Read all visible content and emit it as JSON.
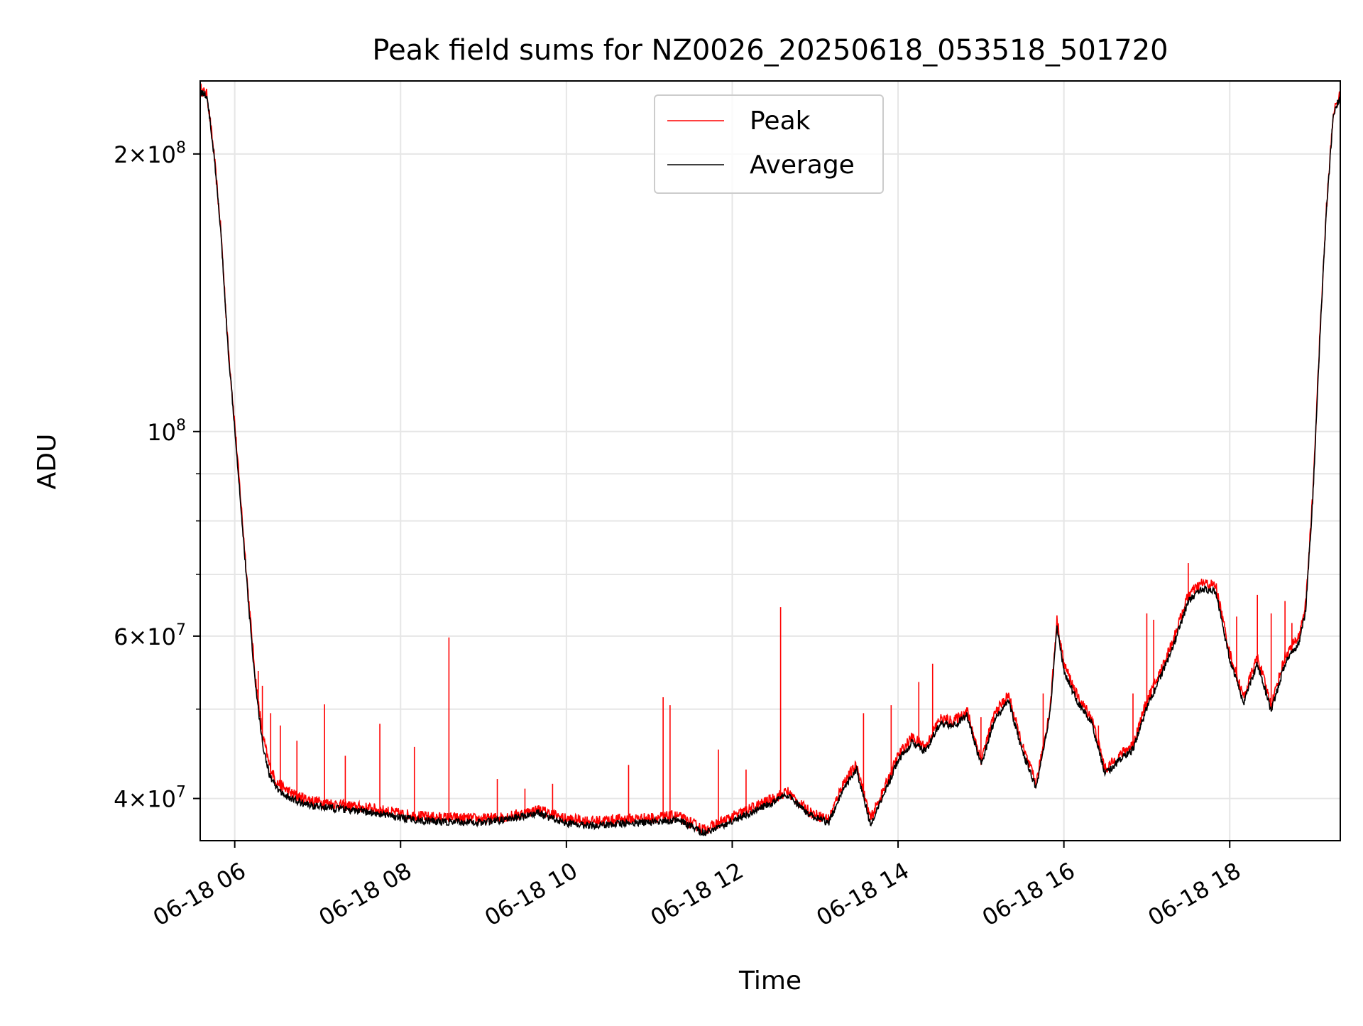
{
  "chart_data": {
    "type": "line",
    "title": "Peak field sums for NZ0026_20250618_053518_501720",
    "xlabel": "Time",
    "ylabel": "ADU",
    "yscale": "log",
    "ylim": [
      36000000,
      240000000
    ],
    "xlim": [
      "06-18 05:35",
      "06-18 19:20"
    ],
    "grid": true,
    "legend_position": "top-center",
    "x_ticks": [
      {
        "value": "06-18 06:00",
        "label": "06-18 06"
      },
      {
        "value": "06-18 08:00",
        "label": "06-18 08"
      },
      {
        "value": "06-18 10:00",
        "label": "06-18 10"
      },
      {
        "value": "06-18 12:00",
        "label": "06-18 12"
      },
      {
        "value": "06-18 14:00",
        "label": "06-18 14"
      },
      {
        "value": "06-18 16:00",
        "label": "06-18 16"
      },
      {
        "value": "06-18 18:00",
        "label": "06-18 18"
      }
    ],
    "y_ticks": [
      {
        "value": 40000000,
        "mantissa": "4",
        "exponent": "7"
      },
      {
        "value": 60000000,
        "mantissa": "6",
        "exponent": "7"
      },
      {
        "value": 100000000,
        "mantissa": "",
        "exponent": "8"
      },
      {
        "value": 200000000,
        "mantissa": "2",
        "exponent": "8"
      }
    ],
    "y_minor_ticks": [
      50000000,
      70000000,
      80000000,
      90000000
    ],
    "base_label": "10",
    "times_sign": "×",
    "series": [
      {
        "name": "Peak",
        "color": "#ff0000",
        "points": [
          [
            "06-18 05:35",
            235000000
          ],
          [
            "06-18 05:40",
            232000000
          ],
          [
            "06-18 05:45",
            200000000
          ],
          [
            "06-18 05:50",
            165000000
          ],
          [
            "06-18 05:55",
            125000000
          ],
          [
            "06-18 06:00",
            102000000
          ],
          [
            "06-18 06:05",
            82000000
          ],
          [
            "06-18 06:10",
            66000000
          ],
          [
            "06-18 06:15",
            54000000
          ],
          [
            "06-18 06:20",
            47000000
          ],
          [
            "06-18 06:25",
            43500000
          ],
          [
            "06-18 06:30",
            41700000
          ],
          [
            "06-18 06:40",
            40600000
          ],
          [
            "06-18 06:50",
            40000000
          ],
          [
            "06-18 07:00",
            39700000
          ],
          [
            "06-18 07:20",
            39300000
          ],
          [
            "06-18 07:40",
            39000000
          ],
          [
            "06-18 08:00",
            38500000
          ],
          [
            "06-18 08:20",
            38200000
          ],
          [
            "06-18 08:40",
            38100000
          ],
          [
            "06-18 09:00",
            38000000
          ],
          [
            "06-18 09:20",
            38300000
          ],
          [
            "06-18 09:40",
            38900000
          ],
          [
            "06-18 10:00",
            38000000
          ],
          [
            "06-18 10:20",
            37800000
          ],
          [
            "06-18 10:40",
            38000000
          ],
          [
            "06-18 11:00",
            38100000
          ],
          [
            "06-18 11:20",
            38300000
          ],
          [
            "06-18 11:40",
            37000000
          ],
          [
            "06-18 12:00",
            38200000
          ],
          [
            "06-18 12:20",
            39400000
          ],
          [
            "06-18 12:40",
            40700000
          ],
          [
            "06-18 12:50",
            39300000
          ],
          [
            "06-18 13:00",
            38400000
          ],
          [
            "06-18 13:10",
            38000000
          ],
          [
            "06-18 13:20",
            41500000
          ],
          [
            "06-18 13:30",
            43500000
          ],
          [
            "06-18 13:40",
            38000000
          ],
          [
            "06-18 13:50",
            41000000
          ],
          [
            "06-18 14:00",
            44500000
          ],
          [
            "06-18 14:10",
            46600000
          ],
          [
            "06-18 14:20",
            45500000
          ],
          [
            "06-18 14:30",
            48800000
          ],
          [
            "06-18 14:40",
            48500000
          ],
          [
            "06-18 14:50",
            49800000
          ],
          [
            "06-18 15:00",
            44000000
          ],
          [
            "06-18 15:10",
            49500000
          ],
          [
            "06-18 15:20",
            51800000
          ],
          [
            "06-18 15:30",
            45500000
          ],
          [
            "06-18 15:40",
            41500000
          ],
          [
            "06-18 15:50",
            50000000
          ],
          [
            "06-18 15:55",
            62500000
          ],
          [
            "06-18 16:00",
            56000000
          ],
          [
            "06-18 16:10",
            51500000
          ],
          [
            "06-18 16:20",
            49000000
          ],
          [
            "06-18 16:30",
            43000000
          ],
          [
            "06-18 16:40",
            44500000
          ],
          [
            "06-18 16:50",
            45800000
          ],
          [
            "06-18 17:00",
            51000000
          ],
          [
            "06-18 17:10",
            55000000
          ],
          [
            "06-18 17:20",
            60000000
          ],
          [
            "06-18 17:30",
            66500000
          ],
          [
            "06-18 17:40",
            68500000
          ],
          [
            "06-18 17:50",
            68000000
          ],
          [
            "06-18 18:00",
            57500000
          ],
          [
            "06-18 18:10",
            51500000
          ],
          [
            "06-18 18:20",
            57000000
          ],
          [
            "06-18 18:30",
            50500000
          ],
          [
            "06-18 18:40",
            57000000
          ],
          [
            "06-18 18:50",
            60000000
          ],
          [
            "06-18 18:55",
            65000000
          ],
          [
            "06-18 19:00",
            85000000
          ],
          [
            "06-18 19:05",
            125000000
          ],
          [
            "06-18 19:10",
            175000000
          ],
          [
            "06-18 19:15",
            222000000
          ],
          [
            "06-18 19:20",
            232000000
          ]
        ]
      },
      {
        "name": "Average",
        "color": "#000000",
        "points": [
          [
            "06-18 05:35",
            234000000
          ],
          [
            "06-18 05:40",
            231000000
          ],
          [
            "06-18 05:45",
            199000000
          ],
          [
            "06-18 05:50",
            164000000
          ],
          [
            "06-18 05:55",
            124000000
          ],
          [
            "06-18 06:00",
            101000000
          ],
          [
            "06-18 06:05",
            81000000
          ],
          [
            "06-18 06:10",
            65000000
          ],
          [
            "06-18 06:15",
            53000000
          ],
          [
            "06-18 06:20",
            46000000
          ],
          [
            "06-18 06:25",
            42500000
          ],
          [
            "06-18 06:30",
            41000000
          ],
          [
            "06-18 06:40",
            40000000
          ],
          [
            "06-18 06:50",
            39500000
          ],
          [
            "06-18 07:00",
            39200000
          ],
          [
            "06-18 07:20",
            38900000
          ],
          [
            "06-18 07:40",
            38600000
          ],
          [
            "06-18 08:00",
            38100000
          ],
          [
            "06-18 08:20",
            37800000
          ],
          [
            "06-18 08:40",
            37700000
          ],
          [
            "06-18 09:00",
            37700000
          ],
          [
            "06-18 09:20",
            38000000
          ],
          [
            "06-18 09:40",
            38600000
          ],
          [
            "06-18 10:00",
            37600000
          ],
          [
            "06-18 10:20",
            37400000
          ],
          [
            "06-18 10:40",
            37600000
          ],
          [
            "06-18 11:00",
            37700000
          ],
          [
            "06-18 11:20",
            37900000
          ],
          [
            "06-18 11:40",
            36700000
          ],
          [
            "06-18 12:00",
            37800000
          ],
          [
            "06-18 12:20",
            39000000
          ],
          [
            "06-18 12:40",
            40300000
          ],
          [
            "06-18 12:50",
            39000000
          ],
          [
            "06-18 13:00",
            38100000
          ],
          [
            "06-18 13:10",
            37700000
          ],
          [
            "06-18 13:20",
            41000000
          ],
          [
            "06-18 13:30",
            43000000
          ],
          [
            "06-18 13:40",
            37500000
          ],
          [
            "06-18 13:50",
            40500000
          ],
          [
            "06-18 14:00",
            44000000
          ],
          [
            "06-18 14:10",
            46000000
          ],
          [
            "06-18 14:20",
            45000000
          ],
          [
            "06-18 14:30",
            48200000
          ],
          [
            "06-18 14:40",
            48000000
          ],
          [
            "06-18 14:50",
            49200000
          ],
          [
            "06-18 15:00",
            43500000
          ],
          [
            "06-18 15:10",
            48800000
          ],
          [
            "06-18 15:20",
            51000000
          ],
          [
            "06-18 15:30",
            45000000
          ],
          [
            "06-18 15:40",
            41000000
          ],
          [
            "06-18 15:50",
            49500000
          ],
          [
            "06-18 15:55",
            61500000
          ],
          [
            "06-18 16:00",
            55000000
          ],
          [
            "06-18 16:10",
            50800000
          ],
          [
            "06-18 16:20",
            48300000
          ],
          [
            "06-18 16:30",
            42500000
          ],
          [
            "06-18 16:40",
            44000000
          ],
          [
            "06-18 16:50",
            45200000
          ],
          [
            "06-18 17:00",
            50200000
          ],
          [
            "06-18 17:10",
            54200000
          ],
          [
            "06-18 17:20",
            59000000
          ],
          [
            "06-18 17:30",
            65500000
          ],
          [
            "06-18 17:40",
            67500000
          ],
          [
            "06-18 17:50",
            67000000
          ],
          [
            "06-18 18:00",
            56500000
          ],
          [
            "06-18 18:10",
            50800000
          ],
          [
            "06-18 18:20",
            56000000
          ],
          [
            "06-18 18:30",
            49800000
          ],
          [
            "06-18 18:40",
            56000000
          ],
          [
            "06-18 18:50",
            59000000
          ],
          [
            "06-18 18:55",
            64000000
          ],
          [
            "06-18 19:00",
            84000000
          ],
          [
            "06-18 19:05",
            124000000
          ],
          [
            "06-18 19:10",
            174000000
          ],
          [
            "06-18 19:15",
            221000000
          ],
          [
            "06-18 19:20",
            231000000
          ]
        ]
      }
    ],
    "peak_spikes": [
      [
        "06-18 06:17",
        55000000
      ],
      [
        "06-18 06:20",
        53000000
      ],
      [
        "06-18 06:26",
        49500000
      ],
      [
        "06-18 06:33",
        48000000
      ],
      [
        "06-18 06:45",
        46200000
      ],
      [
        "06-18 07:05",
        50600000
      ],
      [
        "06-18 07:20",
        44500000
      ],
      [
        "06-18 07:45",
        48200000
      ],
      [
        "06-18 08:10",
        45500000
      ],
      [
        "06-18 08:35",
        59800000
      ],
      [
        "06-18 09:10",
        42000000
      ],
      [
        "06-18 09:30",
        41000000
      ],
      [
        "06-18 09:50",
        41500000
      ],
      [
        "06-18 10:45",
        43500000
      ],
      [
        "06-18 11:10",
        51500000
      ],
      [
        "06-18 11:15",
        50500000
      ],
      [
        "06-18 11:50",
        45200000
      ],
      [
        "06-18 12:10",
        43000000
      ],
      [
        "06-18 12:35",
        64500000
      ],
      [
        "06-18 13:35",
        49500000
      ],
      [
        "06-18 13:55",
        50500000
      ],
      [
        "06-18 14:15",
        53500000
      ],
      [
        "06-18 14:25",
        56000000
      ],
      [
        "06-18 15:00",
        49000000
      ],
      [
        "06-18 15:45",
        52000000
      ],
      [
        "06-18 16:25",
        48000000
      ],
      [
        "06-18 16:50",
        52000000
      ],
      [
        "06-18 17:00",
        63500000
      ],
      [
        "06-18 17:05",
        62500000
      ],
      [
        "06-18 17:30",
        72000000
      ],
      [
        "06-18 18:05",
        63000000
      ],
      [
        "06-18 18:20",
        66500000
      ],
      [
        "06-18 18:30",
        63500000
      ],
      [
        "06-18 18:40",
        65500000
      ],
      [
        "06-18 18:45",
        62000000
      ]
    ]
  }
}
